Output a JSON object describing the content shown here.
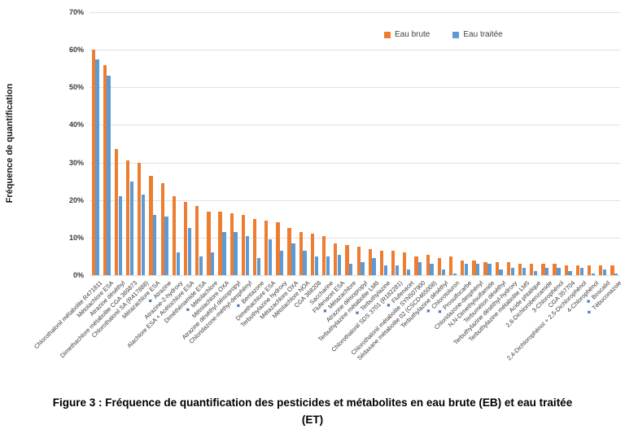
{
  "chart_data": {
    "type": "bar",
    "title": "",
    "ylabel": "Fréquence de quantification",
    "xlabel": "",
    "ylim": [
      0,
      70
    ],
    "yticks": [
      "0%",
      "10%",
      "20%",
      "30%",
      "40%",
      "50%",
      "60%",
      "70%"
    ],
    "grid": true,
    "legend_position": "top-right",
    "star_glyph": "✦",
    "star_color": "#4472a4",
    "grid_color": "#e2e2e2",
    "categories": [
      "Chlorothalonil métabolite R471811",
      "Métolachlore ESA",
      "Atrazine déséthyl",
      "Dimethachlore métabolite CGA 369873",
      "Chlorothalonil SA (R417888)",
      "Métazachlore ESA",
      "Atrazine",
      "Atrazine-2-hydroxy",
      "Alachlore ESA + Acétochlore ESA",
      "Diméthénamide ESA",
      "Métolachlore",
      "Métolachlore OXA",
      "Atrazine déséthyl déisopropyl",
      "Chloridazone-méthyl-desphényl",
      "Bentazone",
      "Dimethachlore ESA",
      "Terbuthylazine hydroxy",
      "Métazachlore OXA",
      "Métolachlore NOA",
      "CGA 368208",
      "Saccharine",
      "Flufenacet ESA",
      "Métazachlore",
      "Atrazine déisopropyl",
      "Terbuthylazine métabolite LM6",
      "Terbuthylazine",
      "Chlorothalonil SDS 3701 (R182281)",
      "Flufenacet",
      "Chlorothalonil métabolite SYN507900",
      "Sédaxane métabolite 02 (CSCD465008)",
      "Terbuthylazine déséthyl",
      "Chlorotoluron",
      "Prosulfocarbe",
      "Chloridazone-desphényl",
      "N,N-Dimethylsulfamide",
      "Terbuméton déséthyl",
      "Terbuthylazine déséthyl-hydroxy",
      "Terbuthylazine métabolite LM5",
      "Acide phtalique",
      "2,6-Dichlorobenzamide",
      "3-Chlorophénol",
      "CGA 357704",
      "2,4-Dichlorophénol + 2,5-Dichlorophénol",
      "4-Chlorophénol",
      "Boscalid",
      "Tébuconazole"
    ],
    "starred_categories": [
      "Atrazine",
      "Métolachlore",
      "Bentazone",
      "Métazachlore",
      "Terbuthylazine",
      "Flufenacet",
      "Chlorotoluron",
      "Prosulfocarbe",
      "Boscalid",
      "Tébuconazole"
    ],
    "series": [
      {
        "name": "Eau brute",
        "color": "#ed7d31",
        "values": [
          60,
          56,
          33.5,
          30.5,
          30,
          26.5,
          24.5,
          21,
          19.5,
          18.5,
          17,
          17,
          16.5,
          16,
          15,
          14.5,
          14,
          12.5,
          11.5,
          11,
          10.5,
          8.5,
          8,
          7.5,
          7,
          6.5,
          6.5,
          6,
          5,
          5.5,
          4.5,
          5,
          4,
          4,
          3.5,
          3.5,
          3.5,
          3,
          3,
          3,
          3,
          2.5,
          2.5,
          2.5,
          2.5,
          2.5
        ]
      },
      {
        "name": "Eau traitée",
        "color": "#5b9bd5",
        "values": [
          57.5,
          53,
          21,
          25,
          21.5,
          16,
          15.5,
          6,
          12.5,
          5,
          6,
          11.5,
          11.5,
          10.5,
          4.5,
          9.5,
          6.5,
          8.5,
          6.5,
          5,
          5,
          5.5,
          3,
          3.5,
          4.5,
          2.5,
          2.5,
          1.5,
          3.5,
          3,
          1.5,
          0.5,
          3,
          3,
          3,
          1.5,
          2,
          2,
          1,
          2,
          2,
          1,
          2,
          0.5,
          1.5,
          0.5
        ]
      }
    ]
  },
  "caption": {
    "line1": "Figure 3 : Fréquence de quantification des pesticides et métabolites en eau brute (EB) et eau traitée",
    "line2": "(ET)"
  }
}
